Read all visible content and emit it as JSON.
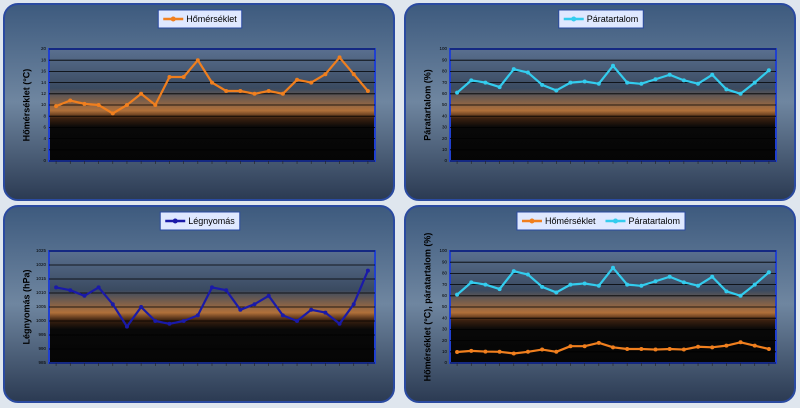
{
  "chart_data": [
    {
      "type": "line",
      "y_label": "Hőmérséklet (°C)",
      "categories": [
        null,
        null,
        null,
        null,
        null,
        null,
        null,
        null,
        null,
        null,
        null,
        null,
        null,
        null,
        null,
        null,
        null,
        null,
        null,
        null,
        null,
        null,
        null
      ],
      "series": [
        {
          "name": "Hőmérséklet",
          "color": "#f07f1e",
          "values": [
            9.8,
            10.8,
            10.2,
            10,
            8.5,
            10,
            12,
            10,
            15,
            15,
            18,
            14,
            12.5,
            12.5,
            12,
            12.5,
            12,
            14.5,
            14,
            15.5,
            18.5,
            15.5,
            12.5
          ]
        }
      ],
      "ylim": [
        0,
        20
      ],
      "yticks": [
        0,
        2,
        4,
        6,
        8,
        10,
        12,
        14,
        16,
        18,
        20
      ],
      "grid": true
    },
    {
      "type": "line",
      "y_label": "Páratartalom (%)",
      "categories": [
        null,
        null,
        null,
        null,
        null,
        null,
        null,
        null,
        null,
        null,
        null,
        null,
        null,
        null,
        null,
        null,
        null,
        null,
        null,
        null,
        null,
        null,
        null
      ],
      "series": [
        {
          "name": "Páratartalom",
          "color": "#33ccee",
          "values": [
            61,
            72,
            70,
            66,
            82,
            79,
            68,
            63,
            70,
            71,
            69,
            85,
            70,
            69,
            73,
            77,
            72,
            69,
            77,
            64,
            60,
            70,
            81
          ]
        }
      ],
      "ylim": [
        0,
        100
      ],
      "yticks": [
        0,
        10,
        20,
        30,
        40,
        50,
        60,
        70,
        80,
        90,
        100
      ],
      "grid": true
    },
    {
      "type": "line",
      "y_label": "Légnyomás (hPa)",
      "categories": [
        null,
        null,
        null,
        null,
        null,
        null,
        null,
        null,
        null,
        null,
        null,
        null,
        null,
        null,
        null,
        null,
        null,
        null,
        null,
        null,
        null,
        null,
        null
      ],
      "series": [
        {
          "name": "Légnyomás",
          "color": "#1a1aa8",
          "values": [
            1012,
            1011,
            1009,
            1012,
            1006,
            998,
            1005,
            1000,
            999,
            1000,
            1002,
            1012,
            1011,
            1004,
            1006,
            1009,
            1002,
            1000,
            1004,
            1003,
            999,
            1006,
            1018
          ]
        }
      ],
      "ylim": [
        985,
        1025
      ],
      "yticks": [
        985,
        990,
        995,
        1000,
        1005,
        1010,
        1015,
        1020,
        1025
      ],
      "grid": true
    },
    {
      "type": "line",
      "y_label": "Hőmérséklet (°C), páratartalom (%)",
      "categories": [
        null,
        null,
        null,
        null,
        null,
        null,
        null,
        null,
        null,
        null,
        null,
        null,
        null,
        null,
        null,
        null,
        null,
        null,
        null,
        null,
        null,
        null,
        null
      ],
      "series": [
        {
          "name": "Hőmérséklet",
          "color": "#f07f1e",
          "values": [
            9.8,
            10.8,
            10.2,
            10,
            8.5,
            10,
            12,
            10,
            15,
            15,
            18,
            14,
            12.5,
            12.5,
            12,
            12.5,
            12,
            14.5,
            14,
            15.5,
            18.5,
            15.5,
            12.5
          ]
        },
        {
          "name": "Páratartalom",
          "color": "#33ccee",
          "values": [
            61,
            72,
            70,
            66,
            82,
            79,
            68,
            63,
            70,
            71,
            69,
            85,
            70,
            69,
            73,
            77,
            72,
            69,
            77,
            64,
            60,
            70,
            81
          ]
        }
      ],
      "ylim": [
        0,
        100
      ],
      "yticks": [
        0,
        10,
        20,
        30,
        40,
        50,
        60,
        70,
        80,
        90,
        100
      ],
      "grid": true
    }
  ]
}
